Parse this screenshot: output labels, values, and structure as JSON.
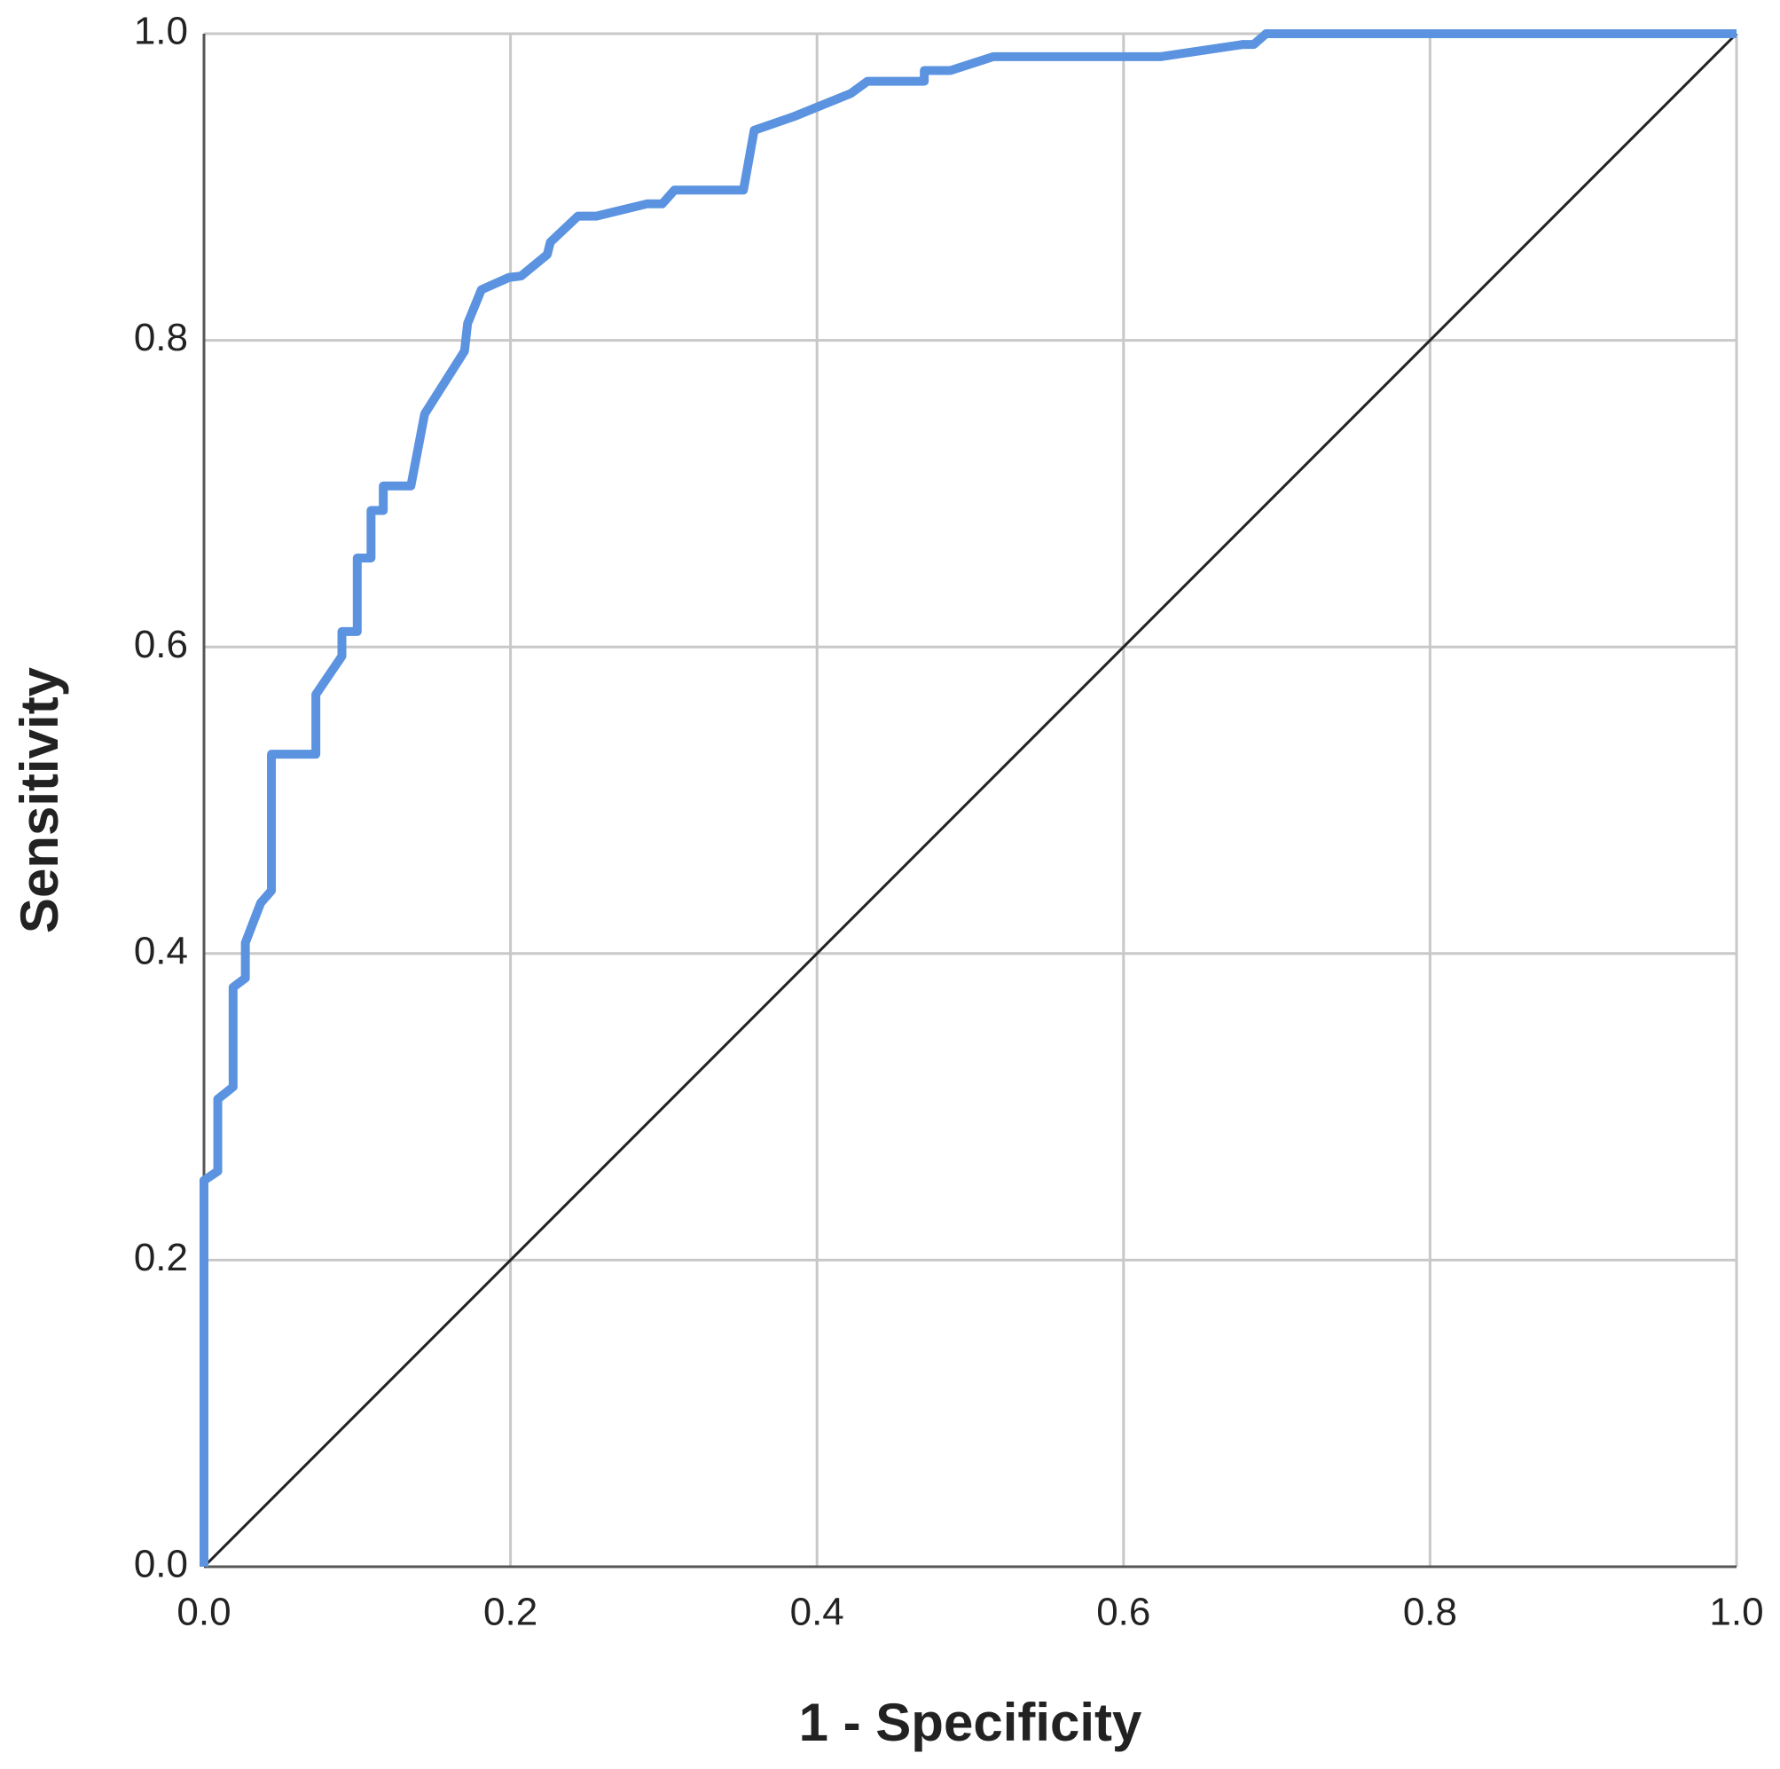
{
  "chart_data": {
    "type": "line",
    "xlabel": "1 - Specificity",
    "ylabel": "Sensitivity",
    "xlim": [
      0,
      1
    ],
    "ylim": [
      0,
      1
    ],
    "xticks": [
      {
        "value": 0,
        "label": "0.0"
      },
      {
        "value": 0.2,
        "label": "0.2"
      },
      {
        "value": 0.4,
        "label": "0.4"
      },
      {
        "value": 0.6,
        "label": "0.6"
      },
      {
        "value": 0.8,
        "label": "0.8"
      },
      {
        "value": 1,
        "label": "1.0"
      }
    ],
    "yticks": [
      {
        "value": 0,
        "label": "0.0"
      },
      {
        "value": 0.2,
        "label": "0.2"
      },
      {
        "value": 0.4,
        "label": "0.4"
      },
      {
        "value": 0.6,
        "label": "0.6"
      },
      {
        "value": 0.8,
        "label": "0.8"
      },
      {
        "value": 1,
        "label": "1.0"
      }
    ],
    "grid": true,
    "series": [
      {
        "color": "#5b93e0",
        "x": [
          0,
          0,
          0.009,
          0.009,
          0.019,
          0.019,
          0.027,
          0.027,
          0.037,
          0.044,
          0.044,
          0.073,
          0.073,
          0.09,
          0.09,
          0.1,
          0.1,
          0.109,
          0.109,
          0.117,
          0.117,
          0.135,
          0.144,
          0.17,
          0.172,
          0.181,
          0.199,
          0.207,
          0.224,
          0.226,
          0.244,
          0.256,
          0.289,
          0.299,
          0.307,
          0.352,
          0.359,
          0.385,
          0.422,
          0.433,
          0.47,
          0.47,
          0.487,
          0.515,
          0.624,
          0.678,
          0.685,
          0.693,
          1
        ],
        "values": [
          0,
          0.252,
          0.258,
          0.305,
          0.313,
          0.378,
          0.384,
          0.407,
          0.433,
          0.441,
          0.53,
          0.53,
          0.569,
          0.594,
          0.61,
          0.61,
          0.658,
          0.658,
          0.689,
          0.689,
          0.705,
          0.705,
          0.752,
          0.793,
          0.811,
          0.833,
          0.841,
          0.842,
          0.856,
          0.864,
          0.881,
          0.881,
          0.889,
          0.889,
          0.898,
          0.898,
          0.937,
          0.946,
          0.961,
          0.969,
          0.969,
          0.976,
          0.976,
          0.985,
          0.985,
          0.993,
          0.993,
          1,
          1
        ]
      },
      {
        "color": "#222222",
        "x": [
          0,
          1
        ],
        "values": [
          0,
          1
        ]
      }
    ]
  }
}
